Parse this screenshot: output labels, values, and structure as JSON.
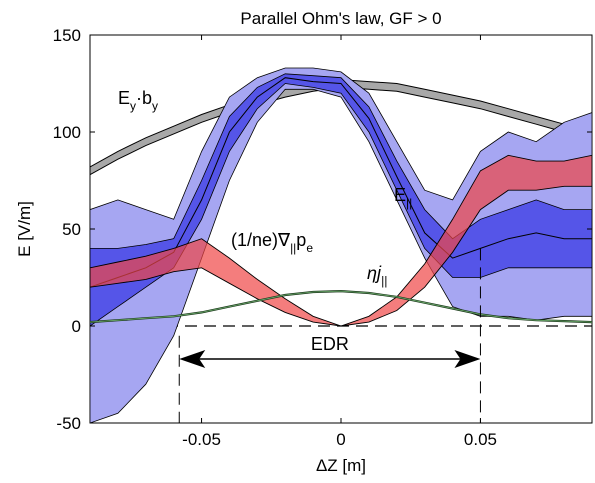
{
  "chart_data": {
    "type": "area",
    "title": "Parallel Ohm's law, GF > 0",
    "xlabel": "ΔZ [m]",
    "ylabel": "E [V/m]",
    "xlim": [
      -0.09,
      0.09
    ],
    "ylim": [
      -50,
      150
    ],
    "xticks": [
      -0.05,
      0,
      0.05
    ],
    "xtick_labels": [
      "-0.05",
      "0",
      "0.05"
    ],
    "yticks": [
      -50,
      0,
      50,
      100,
      150
    ],
    "ytick_labels": [
      "-50",
      "0",
      "50",
      "100",
      "150"
    ],
    "grid": false,
    "legend": "none",
    "x": [
      -0.09,
      -0.08,
      -0.07,
      -0.06,
      -0.05,
      -0.04,
      -0.03,
      -0.02,
      -0.01,
      0,
      0.01,
      0.02,
      0.03,
      0.04,
      0.05,
      0.06,
      0.07,
      0.08,
      0.09
    ],
    "series": [
      {
        "name": "E_y·b_y",
        "color": "#9a9a9a",
        "lower": [
          78,
          86,
          93,
          99,
          105,
          110,
          114,
          118,
          121,
          123,
          122,
          121,
          118,
          115,
          112,
          108,
          104,
          100,
          96
        ],
        "upper": [
          82,
          90,
          97,
          103,
          109,
          114,
          118,
          122,
          125,
          127,
          126,
          125,
          122,
          119,
          116,
          112,
          108,
          104,
          100
        ]
      },
      {
        "name": "E_||",
        "color": "#4444ee",
        "outer_lower": [
          -50,
          -45,
          -30,
          -5,
          35,
          75,
          105,
          122,
          122,
          118,
          95,
          65,
          35,
          10,
          5,
          5,
          3,
          5,
          5
        ],
        "inner_lower": [
          0,
          10,
          20,
          30,
          55,
          90,
          112,
          125,
          123,
          120,
          100,
          70,
          40,
          25,
          25,
          30,
          30,
          30,
          30
        ],
        "median": [
          20,
          25,
          30,
          38,
          65,
          100,
          118,
          128,
          126,
          125,
          107,
          77,
          48,
          35,
          40,
          45,
          48,
          45,
          45
        ],
        "inner_upper": [
          40,
          40,
          42,
          45,
          75,
          108,
          123,
          130,
          129,
          128,
          113,
          85,
          60,
          45,
          55,
          60,
          65,
          60,
          60
        ],
        "outer_upper": [
          60,
          65,
          60,
          55,
          90,
          118,
          128,
          133,
          133,
          131,
          120,
          95,
          70,
          65,
          90,
          100,
          95,
          105,
          110
        ]
      },
      {
        "name": "(1/ne)∇_|| p_e",
        "color": "#ee4444",
        "x": [
          -0.09,
          -0.08,
          -0.07,
          -0.06,
          -0.05,
          -0.04,
          -0.03,
          -0.02,
          -0.01,
          0,
          0.01,
          0.02,
          0.03,
          0.04,
          0.05,
          0.06,
          0.07,
          0.08,
          0.09
        ],
        "lower": [
          20,
          22,
          24,
          28,
          30,
          22,
          14,
          7,
          2,
          0,
          2,
          8,
          20,
          38,
          60,
          70,
          70,
          72,
          72
        ],
        "upper": [
          30,
          33,
          36,
          40,
          45,
          35,
          24,
          14,
          5,
          0,
          5,
          15,
          32,
          55,
          80,
          88,
          85,
          85,
          88
        ]
      },
      {
        "name": "ηj_||",
        "color": "#336633",
        "values": [
          2,
          3,
          4,
          5,
          7,
          10,
          13,
          16,
          17.5,
          18,
          17,
          15,
          12,
          9,
          6,
          4,
          3,
          2.5,
          2
        ]
      }
    ],
    "annotations": {
      "eyby": {
        "main": "E",
        "sub1": "y",
        "dot": "·b",
        "sub2": "y"
      },
      "epar": {
        "main": "E",
        "sub": "||"
      },
      "pressure": {
        "main": "(1/ne)∇",
        "sub1": "||",
        "p": "p",
        "sub2": "e"
      },
      "ohmic": {
        "main": "ηj",
        "sub": "||"
      },
      "edr": {
        "label": "EDR",
        "x_start": -0.058,
        "x_end": 0.05,
        "y": -17
      }
    }
  }
}
